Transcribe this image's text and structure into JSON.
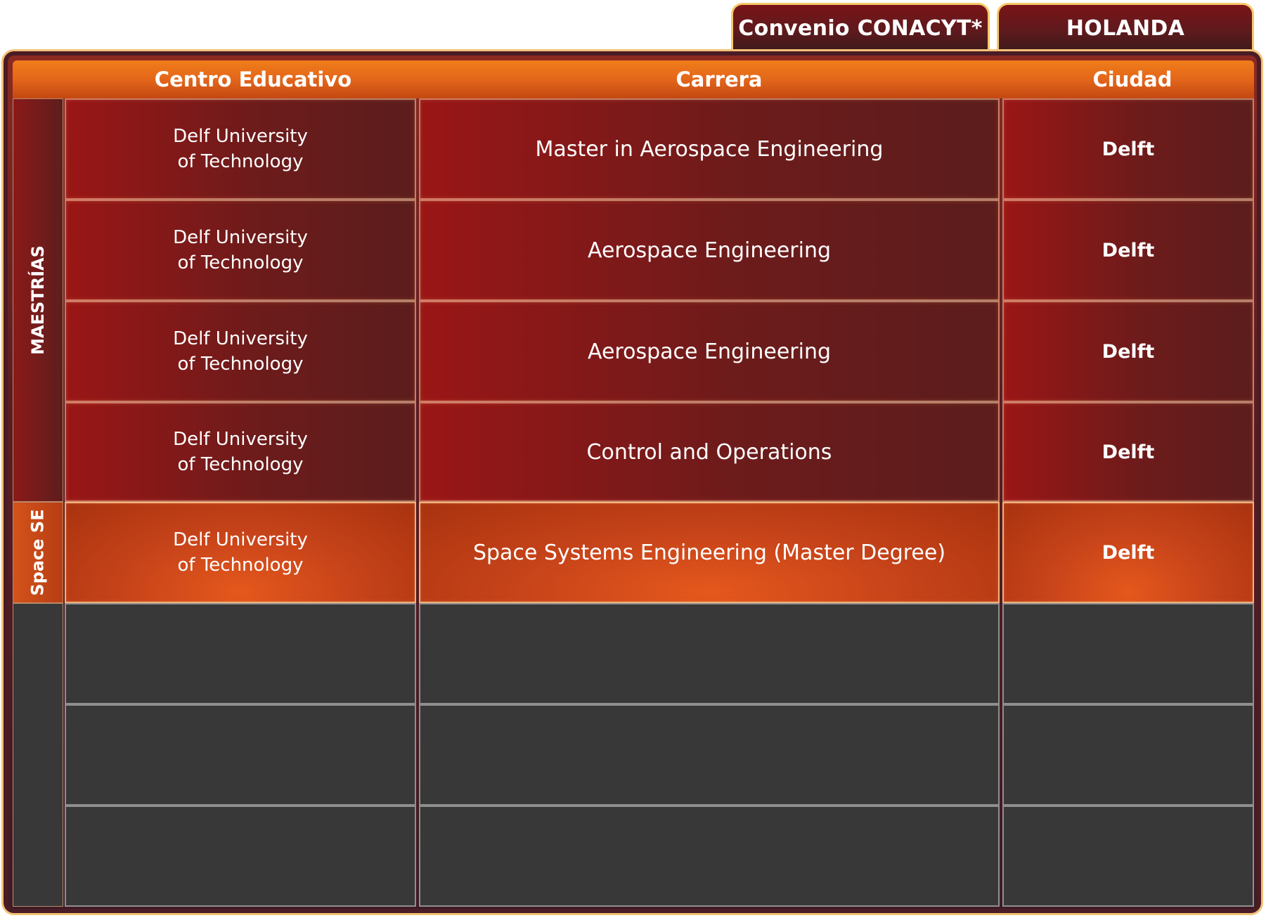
{
  "tabs": {
    "convenio": "Convenio CONACYT*",
    "pais": "HOLANDA"
  },
  "header": {
    "centro": "Centro Educativo",
    "carrera": "Carrera",
    "ciudad": "Ciudad"
  },
  "categories": {
    "maestrias": "MAESTRÍAS",
    "space": "Space SE"
  },
  "rows": [
    {
      "centro_line1": "Delf University",
      "centro_line2": "of Technology",
      "carrera": "Master in Aerospace Engineering",
      "ciudad": "Delft"
    },
    {
      "centro_line1": "Delf University",
      "centro_line2": "of Technology",
      "carrera": "Aerospace Engineering",
      "ciudad": "Delft"
    },
    {
      "centro_line1": "Delf University",
      "centro_line2": "of Technology",
      "carrera": "Aerospace Engineering",
      "ciudad": "Delft"
    },
    {
      "centro_line1": "Delf University",
      "centro_line2": "of Technology",
      "carrera": "Control and Operations",
      "ciudad": "Delft"
    },
    {
      "centro_line1": "Delf University",
      "centro_line2": "of Technology",
      "carrera": "Space Systems Engineering (Master Degree)",
      "ciudad": "Delft"
    }
  ],
  "colors": {
    "header_orange": "#e3661a",
    "row_red": "#6d1b1b",
    "row_orange": "#c8441a",
    "empty_gray": "#383838",
    "tab_border_gold": "#f6c96a"
  }
}
